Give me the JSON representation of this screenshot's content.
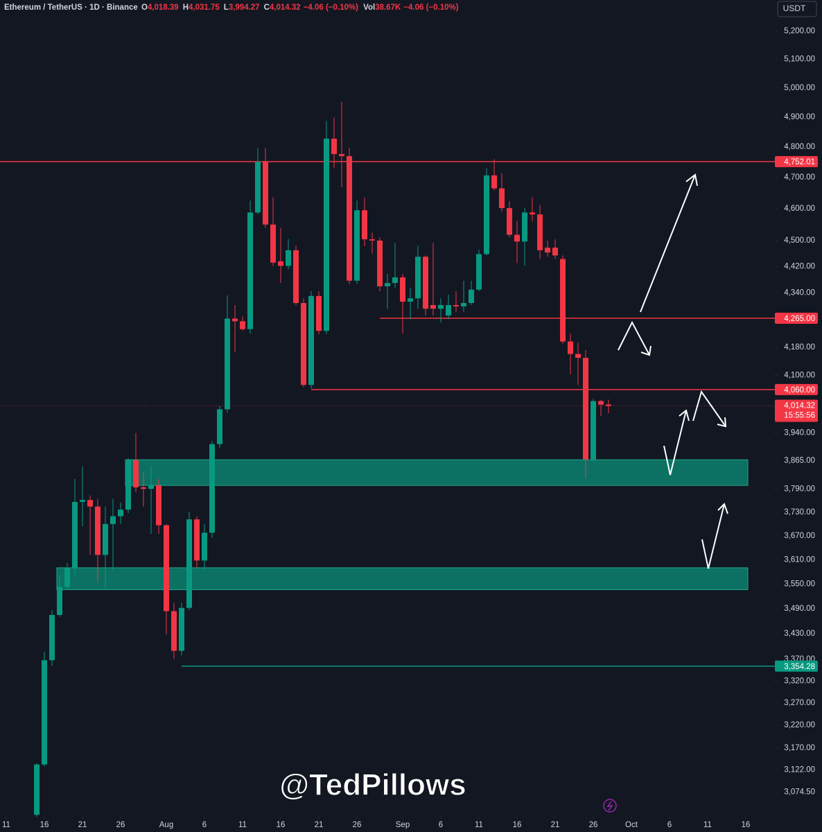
{
  "header": {
    "symbol": "Ethereum / TetherUS · 1D · Binance",
    "ohlc": [
      {
        "k": "O",
        "v": "4,018.39"
      },
      {
        "k": "H",
        "v": "4,031.75"
      },
      {
        "k": "L",
        "v": "3,994.27"
      },
      {
        "k": "C",
        "v": "4,014.32"
      }
    ],
    "change": "−4.06 (−0.10%)",
    "vol_label": "Vol",
    "vol": "38.67K",
    "vol_change": "−4.06 (−0.10%)",
    "currency": "USDT"
  },
  "watermark": "@TedPillows",
  "chart_data": {
    "type": "candlestick",
    "log_scale": true,
    "up_color": "#089981",
    "down_color": "#f23645",
    "categories": [
      "Jul 15",
      "Jul 16",
      "Jul 17",
      "Jul 18",
      "Jul 19",
      "Jul 20",
      "Jul 21",
      "Jul 22",
      "Jul 23",
      "Jul 24",
      "Jul 25",
      "Jul 26",
      "Jul 27",
      "Jul 28",
      "Jul 29",
      "Jul 30",
      "Jul 31",
      "Aug 1",
      "Aug 2",
      "Aug 3",
      "Aug 4",
      "Aug 5",
      "Aug 6",
      "Aug 7",
      "Aug 8",
      "Aug 9",
      "Aug 10",
      "Aug 11",
      "Aug 12",
      "Aug 13",
      "Aug 14",
      "Aug 15",
      "Aug 16",
      "Aug 17",
      "Aug 18",
      "Aug 19",
      "Aug 20",
      "Aug 21",
      "Aug 22",
      "Aug 23",
      "Aug 24",
      "Aug 25",
      "Aug 26",
      "Aug 27",
      "Aug 28",
      "Aug 29",
      "Aug 30",
      "Aug 31",
      "Sep 1",
      "Sep 2",
      "Sep 3",
      "Sep 4",
      "Sep 5",
      "Sep 6",
      "Sep 7",
      "Sep 8",
      "Sep 9",
      "Sep 10",
      "Sep 11",
      "Sep 12",
      "Sep 13",
      "Sep 14",
      "Sep 15",
      "Sep 16",
      "Sep 17",
      "Sep 18",
      "Sep 19",
      "Sep 20",
      "Sep 21",
      "Sep 22",
      "Sep 23",
      "Sep 24",
      "Sep 25",
      "Sep 26",
      "Sep 27",
      "Sep 28"
    ],
    "open": [
      3027,
      3134,
      3368,
      3475,
      3543,
      3590,
      3757,
      3762,
      3745,
      3622,
      3700,
      3720,
      3737,
      3867,
      3795,
      3791,
      3800,
      3697,
      3484,
      3390,
      3492,
      3712,
      3608,
      3678,
      3910,
      4005,
      4264,
      4256,
      4233,
      4588,
      4752,
      4550,
      4436,
      4422,
      4470,
      4310,
      4073,
      4331,
      4228,
      4828,
      4777,
      4770,
      4377,
      4595,
      4504,
      4500,
      4360,
      4370,
      4387,
      4314,
      4324,
      4450,
      4304,
      4293,
      4273,
      4304,
      4300,
      4310,
      4350,
      4458,
      4707,
      4665,
      4602,
      4518,
      4497,
      4588,
      4582,
      4478,
      4478,
      4443,
      4197,
      4161,
      4150,
      3869,
      4028,
      4018.39
    ],
    "high": [
      3137,
      3388,
      3487,
      3572,
      3602,
      3817,
      3850,
      3774,
      3765,
      3745,
      3765,
      3755,
      3872,
      3940,
      3834,
      3851,
      3817,
      3700,
      3504,
      3504,
      3732,
      3720,
      3700,
      3919,
      4014,
      4333,
      4304,
      4270,
      4626,
      4797,
      4797,
      4636,
      4540,
      4505,
      4484,
      4324,
      4345,
      4345,
      4887,
      4899,
      4952,
      4797,
      4626,
      4636,
      4525,
      4510,
      4398,
      4493,
      4398,
      4356,
      4484,
      4454,
      4493,
      4324,
      4335,
      4345,
      4377,
      4377,
      4472,
      4730,
      4760,
      4714,
      4624,
      4562,
      4602,
      4636,
      4612,
      4500,
      4504,
      4454,
      4220,
      4193,
      4172,
      4034,
      4031,
      4031.75
    ],
    "low": [
      3023,
      3130,
      3355,
      3470,
      3536,
      3573,
      3694,
      3622,
      3553,
      3536,
      3581,
      3700,
      3728,
      3782,
      3745,
      3675,
      3675,
      3429,
      3371,
      3379,
      3487,
      3590,
      3581,
      3665,
      3900,
      3995,
      4166,
      4228,
      4220,
      4582,
      4540,
      4422,
      4370,
      4412,
      4304,
      4067,
      4063,
      4218,
      4218,
      4731,
      4669,
      4367,
      4367,
      4483,
      4460,
      4345,
      4293,
      4356,
      4220,
      4262,
      4293,
      4273,
      4273,
      4252,
      4262,
      4283,
      4283,
      4304,
      4345,
      4454,
      4659,
      4591,
      4510,
      4430,
      4422,
      4560,
      4443,
      4450,
      4443,
      4191,
      4103,
      4073,
      3818,
      3864,
      3986,
      3994.27
    ],
    "close": [
      3134,
      3368,
      3475,
      3543,
      3590,
      3757,
      3762,
      3745,
      3622,
      3700,
      3720,
      3737,
      3867,
      3795,
      3791,
      3800,
      3697,
      3484,
      3390,
      3492,
      3712,
      3608,
      3678,
      3910,
      4005,
      4264,
      4256,
      4233,
      4588,
      4752,
      4550,
      4432,
      4422,
      4470,
      4310,
      4073,
      4331,
      4228,
      4828,
      4777,
      4770,
      4377,
      4595,
      4504,
      4500,
      4360,
      4370,
      4387,
      4314,
      4324,
      4450,
      4293,
      4293,
      4304,
      4304,
      4300,
      4310,
      4350,
      4458,
      4707,
      4665,
      4602,
      4518,
      4497,
      4588,
      4582,
      4470,
      4463,
      4454,
      4197,
      4161,
      4150,
      3869,
      4028,
      4018,
      4014.32
    ],
    "ylim": [
      3023,
      5313
    ],
    "yticks": [
      {
        "value": 5200,
        "label": "5,200.00"
      },
      {
        "value": 5100,
        "label": "5,100.00"
      },
      {
        "value": 5000,
        "label": "5,000.00"
      },
      {
        "value": 4900,
        "label": "4,900.00"
      },
      {
        "value": 4800,
        "label": "4,800.00"
      },
      {
        "value": 4700,
        "label": "4,700.00"
      },
      {
        "value": 4600,
        "label": "4,600.00"
      },
      {
        "value": 4500,
        "label": "4,500.00"
      },
      {
        "value": 4420,
        "label": "4,420.00"
      },
      {
        "value": 4340,
        "label": "4,340.00"
      },
      {
        "value": 4180,
        "label": "4,180.00"
      },
      {
        "value": 4100,
        "label": "4,100.00"
      },
      {
        "value": 3940,
        "label": "3,940.00"
      },
      {
        "value": 3865,
        "label": "3,865.00"
      },
      {
        "value": 3790,
        "label": "3,790.00"
      },
      {
        "value": 3730,
        "label": "3,730.00"
      },
      {
        "value": 3670,
        "label": "3,670.00"
      },
      {
        "value": 3610,
        "label": "3,610.00"
      },
      {
        "value": 3550,
        "label": "3,550.00"
      },
      {
        "value": 3490,
        "label": "3,490.00"
      },
      {
        "value": 3430,
        "label": "3,430.00"
      },
      {
        "value": 3370,
        "label": "3,370.00"
      },
      {
        "value": 3320,
        "label": "3,320.00"
      },
      {
        "value": 3270,
        "label": "3,270.00"
      },
      {
        "value": 3220,
        "label": "3,220.00"
      },
      {
        "value": 3170,
        "label": "3,170.00"
      },
      {
        "value": 3122,
        "label": "3,122.00"
      },
      {
        "value": 3074.5,
        "label": "3,074.50"
      }
    ],
    "xticks": [
      {
        "value": -4,
        "label": "11"
      },
      {
        "value": 1,
        "label": "16"
      },
      {
        "value": 6,
        "label": "21"
      },
      {
        "value": 11,
        "label": "26"
      },
      {
        "value": 17,
        "label": "Aug"
      },
      {
        "value": 22,
        "label": "6"
      },
      {
        "value": 27,
        "label": "11"
      },
      {
        "value": 32,
        "label": "16"
      },
      {
        "value": 37,
        "label": "21"
      },
      {
        "value": 42,
        "label": "26"
      },
      {
        "value": 48,
        "label": "Sep"
      },
      {
        "value": 53,
        "label": "6"
      },
      {
        "value": 58,
        "label": "11"
      },
      {
        "value": 63,
        "label": "16"
      },
      {
        "value": 68,
        "label": "21"
      },
      {
        "value": 73,
        "label": "26"
      },
      {
        "value": 78,
        "label": "Oct"
      },
      {
        "value": 83,
        "label": "6"
      },
      {
        "value": 88,
        "label": "11"
      },
      {
        "value": 93,
        "label": "16"
      }
    ],
    "levels": [
      {
        "value": 4752.01,
        "label": "4,752.01",
        "color": "#f23645"
      },
      {
        "value": 4265,
        "label": "4,265.00",
        "color": "#f23645",
        "from": "Aug 29"
      },
      {
        "value": 4060,
        "label": "4,060.00",
        "color": "#f23645",
        "from": "Aug 20"
      },
      {
        "value": 3354.28,
        "label": "3,354.28",
        "color": "#089981",
        "from": "Aug 3"
      }
    ],
    "zones": [
      {
        "top": 3868,
        "bottom": 3800,
        "from": "Jul 27",
        "color": "#0c7a68"
      },
      {
        "top": 3590,
        "bottom": 3536,
        "from": "Jul 18",
        "color": "#0c7a68"
      }
    ],
    "last_price": {
      "value": 4014.32,
      "label": "4,014.32",
      "countdown": "15:55:56",
      "color": "#f23645"
    }
  }
}
